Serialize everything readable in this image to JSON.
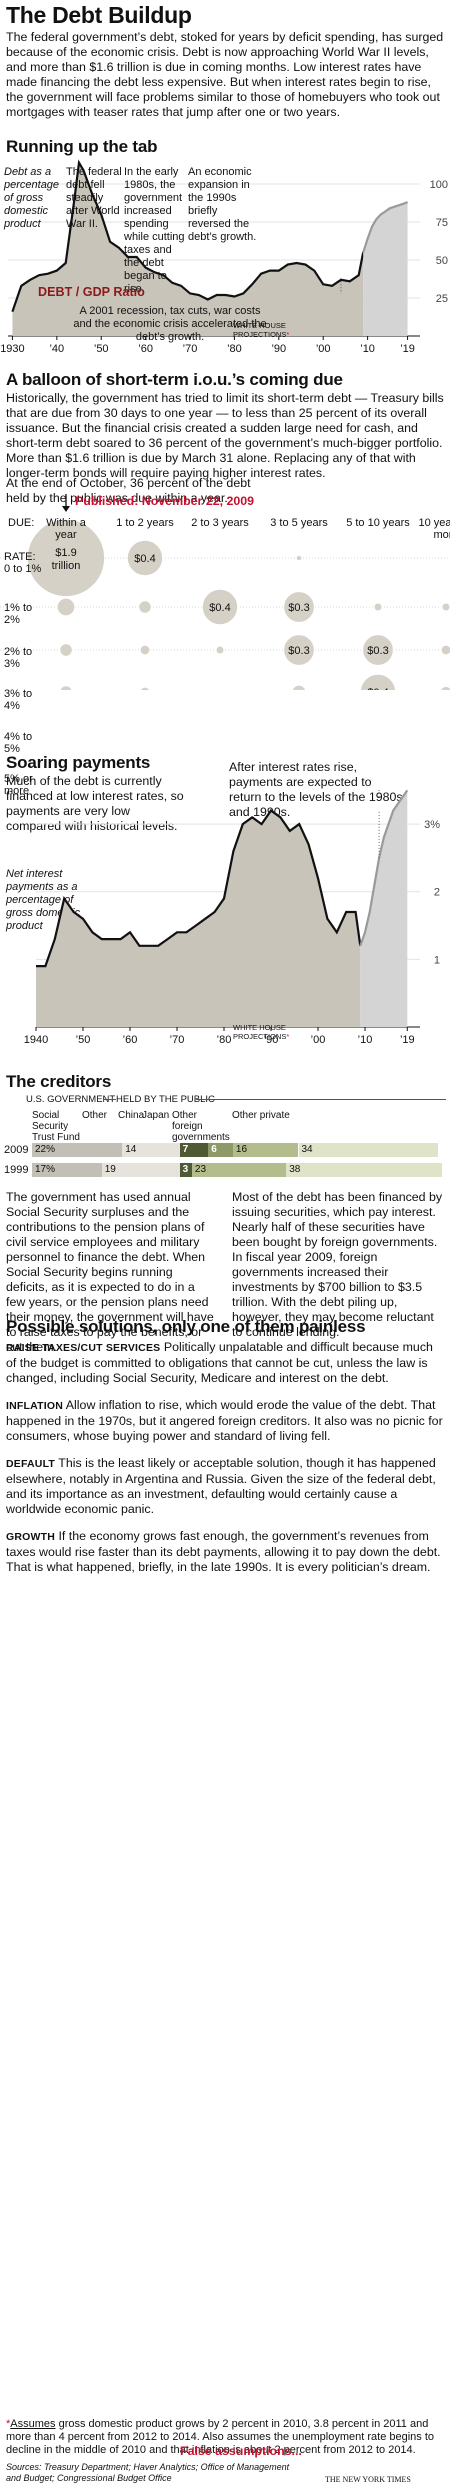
{
  "header": {
    "title": "The Debt Buildup",
    "intro": "The federal government’s debt, stoked for years by deficit spending, has surged because of the economic crisis. Debt is now approaching World War II levels, and more than $1.6 trillion is due in coming months. Low interest rates have made financing the debt less expensive. But when interest rates begin to rise, the government will face problems similar to those of homebuyers who took out mortgages with teaser rates that jump after one or two years."
  },
  "section1": {
    "title": "Running up the tab",
    "ylabel": "Debt as a percentage of gross domestic product",
    "annotations": [
      "The federal debt fell steadily after World War II.",
      "In the early 1980s, the government increased spending while cutting taxes and the debt began to rise.",
      "An economic expansion in the 1990s briefly reversed the debt’s growth.",
      "A 2001 recession, tax cuts, war costs and the economic crisis accelerated the debt’s growth."
    ],
    "ratio_label": "DEBT / GDP Ratio",
    "projection_label": "WHITE HOUSE PROJECTIONS",
    "asterisk": "*"
  },
  "section2": {
    "title": "A balloon of short-term i.o.u.’s coming due",
    "body": "Historically, the government has tried to limit its short-term debt — Treasury bills that are due from 30 days to one year — to less than 25 percent of its overall issuance. But the financial crisis created a sudden large need for cash, and short-term debt soared to 36 percent of the government’s much-bigger portfolio. More than $1.6 trillion is due by March 31 alone. Replacing any of that with longer-term bonds will require paying higher interest rates.",
    "note": "At the end of October, 36 percent of the debt held by the public was due within a year.",
    "published": "Published: November 22, 2009",
    "due_label": "DUE:",
    "rate_label": "RATE:",
    "columns": [
      "Within a year",
      "1 to 2 years",
      "2 to 3 years",
      "3 to 5 years",
      "5 to 10 years",
      "10 years or more"
    ],
    "rows": [
      "0 to 1%",
      "1% to 2%",
      "2% to 3%",
      "3% to 4%",
      "4% to 5%",
      "5% or more"
    ],
    "bubble_labels": [
      "$1.9 trillion",
      "$0.4",
      "$0.4",
      "$0.3",
      "$0.3",
      "$0.3",
      "$0.4",
      "$0.3"
    ]
  },
  "section3": {
    "title": "Soaring payments",
    "left_text": "Much of the debt is currently financed at low interest rates, so payments are very low compared with historical levels.",
    "right_text": "After interest rates rise, payments are expected to return to the levels of the 1980s and 1990s.",
    "ylabel": "Net interest payments as a percentage of gross domestic product",
    "projection_label": "WHITE HOUSE PROJECTIONS",
    "asterisk": "*"
  },
  "section4": {
    "title": "The creditors",
    "gov_header": "U.S. GOVERNMENT",
    "public_header": "HELD BY THE PUBLIC",
    "col_labels": [
      "Social Security Trust Fund",
      "Other",
      "China",
      "Japan",
      "Other foreign governments",
      "Other private"
    ],
    "rows": [
      {
        "year": "2009",
        "values": [
          "22%",
          "14",
          "7",
          "6",
          "16",
          "34"
        ]
      },
      {
        "year": "1999",
        "values": [
          "17%",
          "19",
          "3",
          "",
          "23",
          "38"
        ]
      }
    ],
    "text_left": "The government has used annual Social Security surpluses and the contributions to the pension plans of civil service employees and military personnel to finance the debt. When Social Security begins running deficits, as it is expected to do in a few years, or the pension plans need their money, the government will have to raise taxes to pay the benefits, or cut them.",
    "text_right": "Most of the debt has been financed by issuing securities, which pay interest. Nearly half of these securities have been bought by foreign governments. In fiscal year 2009, foreign governments increased their investments by $700 billion to $3.5 trillion. With the debt piling up, however, they may become reluctant to continue lending."
  },
  "section5": {
    "title": "Possible solutions, only one of them painless",
    "items": [
      {
        "label": "RAISE TAXES/CUT SERVICES",
        "text": "Politically unpalatable and difficult because much of the budget is committed to obligations that cannot be cut, unless the law is changed, including Social Security, Medicare and interest on the debt."
      },
      {
        "label": "INFLATION",
        "text": "Allow inflation to rise, which would erode the value of the debt. That happened in the 1970s, but it angered foreign creditors. It also was no picnic for consumers, whose buying power and standard of living fell."
      },
      {
        "label": "DEFAULT",
        "text": "This is the least likely or acceptable solution, though it has happened elsewhere, notably in Argentina and Russia. Given the size of the federal debt, and its importance as an investment, defaulting would certainly cause a worldwide economic panic."
      },
      {
        "label": "GROWTH",
        "text": "If the economy grows fast enough, the government’s revenues from taxes would rise faster than its debt payments, allowing it to pay down the debt. That is what happened, briefly, in the late 1990s. It is every politician’s dream."
      }
    ],
    "assumes_prefix": "*",
    "assumes_word": "Assumes",
    "assumes_text": " gross domestic product grows by 2 percent in 2010, 3.8 percent in 2011 and more than 4 percent from 2012 to 2014. Also assumes the unemployment rate begins to decline in the middle of 2010 and that inflation is about 2 percent from 2012 to 2014.",
    "false_assumptions": "False assumptions...",
    "sources": "Sources: Treasury Department; Haver Analytics; Office of Management and Budget; Congressional Budget Office",
    "credit": "THE NEW YORK TIMES"
  },
  "colors": {
    "area": "#c9c4ba",
    "projection": "#bfbfbf",
    "red": "#c8102e",
    "bubble": "#d6d1c6",
    "gov1": "#c2bfb6",
    "gov2": "#e6e3dc",
    "china": "#4f5a35",
    "japan": "#8e9968",
    "otherforeign": "#b3bc8c",
    "otherprivate": "#dfe3c8"
  },
  "chart_data": [
    {
      "type": "area",
      "title": "Running up the tab",
      "ylabel": "Debt as a percentage of gross domestic product",
      "x": [
        1930,
        1932,
        1934,
        1936,
        1938,
        1940,
        1942,
        1944,
        1945,
        1946,
        1948,
        1950,
        1952,
        1954,
        1956,
        1958,
        1960,
        1962,
        1964,
        1966,
        1968,
        1970,
        1972,
        1974,
        1976,
        1978,
        1980,
        1982,
        1984,
        1986,
        1988,
        1990,
        1992,
        1994,
        1996,
        1998,
        2000,
        2002,
        2004,
        2006,
        2008,
        2009
      ],
      "y": [
        16,
        33,
        37,
        40,
        41,
        43,
        48,
        91,
        114,
        109,
        93,
        80,
        62,
        58,
        52,
        52,
        45,
        42,
        40,
        35,
        33,
        28,
        27,
        24,
        27,
        27,
        26,
        28,
        34,
        41,
        43,
        43,
        47,
        48,
        47,
        43,
        34,
        33,
        37,
        36,
        40,
        55
      ],
      "projection": {
        "x": [
          2009,
          2010,
          2011,
          2012,
          2013,
          2014,
          2015,
          2016,
          2017,
          2018,
          2019
        ],
        "y": [
          55,
          64,
          72,
          77,
          80,
          82,
          84,
          85,
          86,
          87,
          88
        ]
      },
      "xticks": [
        "1930",
        "’40",
        "’50",
        "’60",
        "’70",
        "’80",
        "’90",
        "’00",
        "’10",
        "’19"
      ],
      "yticks": [
        "25",
        "50",
        "75",
        "100",
        "125%"
      ],
      "ylim": [
        0,
        125
      ]
    },
    {
      "type": "bubble",
      "title": "A balloon of short-term i.o.u.’s coming due",
      "columns": [
        "Within a year",
        "1 to 2 years",
        "2 to 3 years",
        "3 to 5 years",
        "5 to 10 years",
        "10 years or more"
      ],
      "rows": [
        "0 to 1%",
        "1% to 2%",
        "2% to 3%",
        "3% to 4%",
        "4% to 5%",
        "5% or more"
      ],
      "values_trillions": [
        [
          1.9,
          0.4,
          0,
          0.01,
          0,
          0
        ],
        [
          0.1,
          0.05,
          0.4,
          0.3,
          0.02,
          0.02
        ],
        [
          0.05,
          0.03,
          0.02,
          0.3,
          0.3,
          0.03
        ],
        [
          0.05,
          0.03,
          0.005,
          0.06,
          0.4,
          0.04
        ],
        [
          0.08,
          0.2,
          0.2,
          0.2,
          0.2,
          0.2
        ],
        [
          0.02,
          0.02,
          0.01,
          0.01,
          0.2,
          0.3
        ]
      ]
    },
    {
      "type": "area",
      "title": "Soaring payments",
      "ylabel": "Net interest payments as a percentage of gross domestic product",
      "x": [
        1940,
        1942,
        1944,
        1946,
        1948,
        1950,
        1952,
        1954,
        1956,
        1958,
        1960,
        1962,
        1964,
        1966,
        1968,
        1970,
        1972,
        1974,
        1976,
        1978,
        1980,
        1982,
        1984,
        1986,
        1988,
        1990,
        1992,
        1994,
        1996,
        1998,
        2000,
        2002,
        2004,
        2006,
        2008,
        2009
      ],
      "y": [
        0.9,
        0.9,
        1.3,
        1.9,
        1.7,
        1.6,
        1.4,
        1.3,
        1.3,
        1.3,
        1.4,
        1.2,
        1.2,
        1.2,
        1.3,
        1.4,
        1.4,
        1.5,
        1.6,
        1.7,
        1.9,
        2.6,
        3.0,
        3.1,
        3.0,
        3.2,
        3.1,
        2.9,
        3.0,
        2.7,
        2.2,
        1.6,
        1.4,
        1.7,
        1.7,
        1.2
      ],
      "projection": {
        "x": [
          2009,
          2010,
          2011,
          2012,
          2013,
          2014,
          2015,
          2016,
          2017,
          2018,
          2019
        ],
        "y": [
          1.2,
          1.4,
          1.7,
          2.1,
          2.5,
          2.8,
          3.0,
          3.2,
          3.3,
          3.4,
          3.5
        ]
      },
      "xticks": [
        "1940",
        "’50",
        "’60",
        "’70",
        "’80",
        "’90",
        "’00",
        "’10",
        "’19"
      ],
      "yticks": [
        "1",
        "2",
        "3%"
      ],
      "ylim": [
        0,
        4
      ]
    },
    {
      "type": "bar",
      "title": "The creditors",
      "categories": [
        "Social Security Trust Fund",
        "Other",
        "China",
        "Japan",
        "Other foreign governments",
        "Other private"
      ],
      "series": [
        {
          "name": "2009",
          "values": [
            22,
            14,
            7,
            6,
            16,
            34
          ]
        },
        {
          "name": "1999",
          "values": [
            17,
            19,
            3,
            0,
            23,
            38
          ]
        }
      ]
    }
  ]
}
